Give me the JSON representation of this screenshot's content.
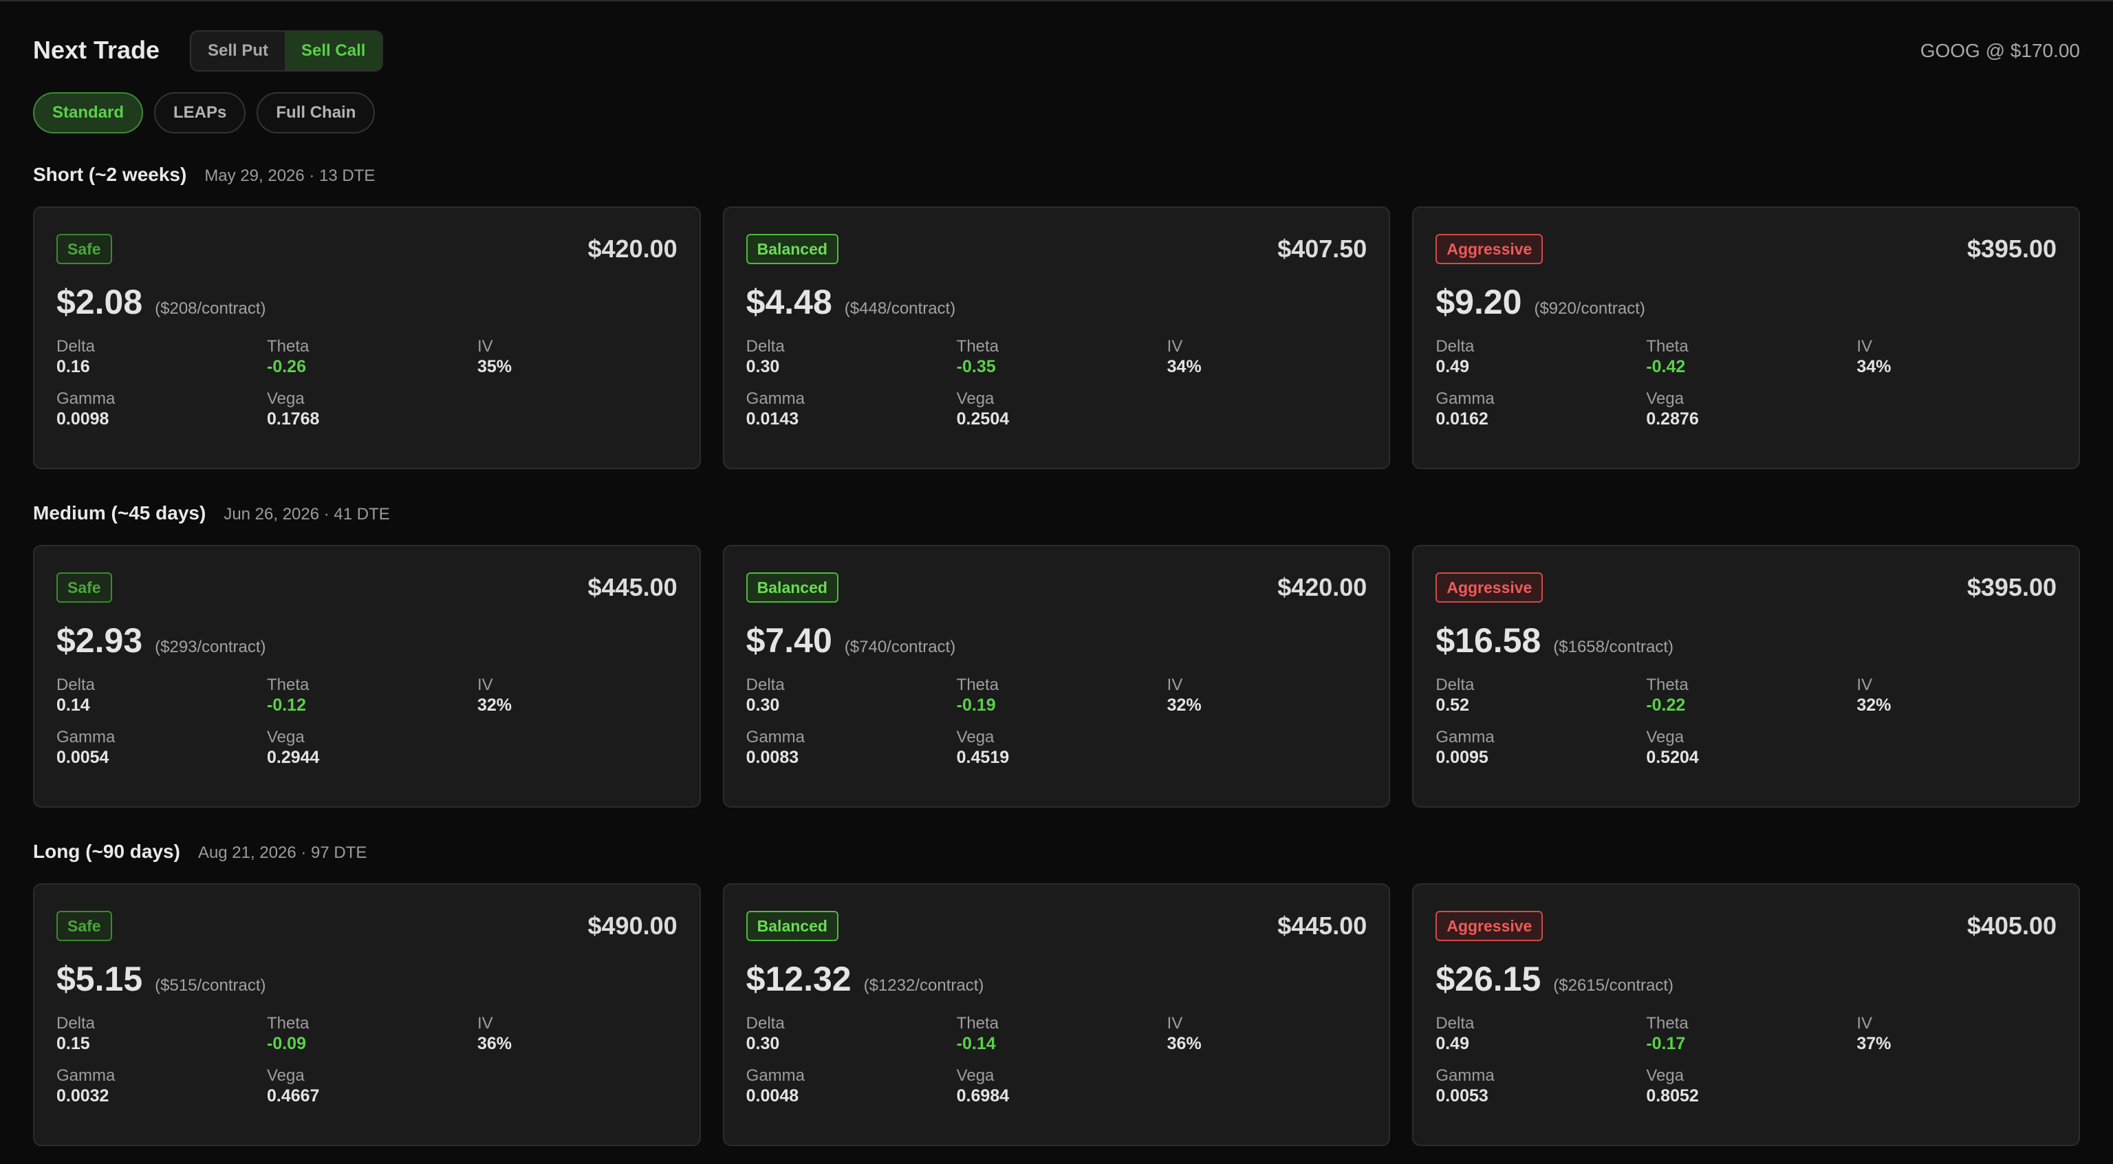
{
  "header": {
    "title": "Next Trade",
    "toggle": [
      {
        "label": "Sell Put",
        "active": false
      },
      {
        "label": "Sell Call",
        "active": true
      }
    ],
    "ticker": "GOOG @ $170.00"
  },
  "filters": [
    {
      "label": "Standard",
      "active": true
    },
    {
      "label": "LEAPs",
      "active": false
    },
    {
      "label": "Full Chain",
      "active": false
    }
  ],
  "labels": {
    "delta": "Delta",
    "theta": "Theta",
    "iv": "IV",
    "gamma": "Gamma",
    "vega": "Vega"
  },
  "colors": {
    "positive": "#5ad14a",
    "safe": "#4aa63b",
    "balanced": "#6bdc56",
    "aggressive": "#ef5a5a"
  },
  "sections": [
    {
      "title": "Short (~2 weeks)",
      "subtitle": "May 29, 2026 · 13 DTE",
      "cards": [
        {
          "badge": "Safe",
          "kind": "safe",
          "strike": "$420.00",
          "premium": "$2.08",
          "per_contract": "($208/contract)",
          "delta": "0.16",
          "theta": "-0.26",
          "iv": "35%",
          "gamma": "0.0098",
          "vega": "0.1768"
        },
        {
          "badge": "Balanced",
          "kind": "balanced",
          "strike": "$407.50",
          "premium": "$4.48",
          "per_contract": "($448/contract)",
          "delta": "0.30",
          "theta": "-0.35",
          "iv": "34%",
          "gamma": "0.0143",
          "vega": "0.2504"
        },
        {
          "badge": "Aggressive",
          "kind": "aggressive",
          "strike": "$395.00",
          "premium": "$9.20",
          "per_contract": "($920/contract)",
          "delta": "0.49",
          "theta": "-0.42",
          "iv": "34%",
          "gamma": "0.0162",
          "vega": "0.2876"
        }
      ]
    },
    {
      "title": "Medium (~45 days)",
      "subtitle": "Jun 26, 2026 · 41 DTE",
      "cards": [
        {
          "badge": "Safe",
          "kind": "safe",
          "strike": "$445.00",
          "premium": "$2.93",
          "per_contract": "($293/contract)",
          "delta": "0.14",
          "theta": "-0.12",
          "iv": "32%",
          "gamma": "0.0054",
          "vega": "0.2944"
        },
        {
          "badge": "Balanced",
          "kind": "balanced",
          "strike": "$420.00",
          "premium": "$7.40",
          "per_contract": "($740/contract)",
          "delta": "0.30",
          "theta": "-0.19",
          "iv": "32%",
          "gamma": "0.0083",
          "vega": "0.4519"
        },
        {
          "badge": "Aggressive",
          "kind": "aggressive",
          "strike": "$395.00",
          "premium": "$16.58",
          "per_contract": "($1658/contract)",
          "delta": "0.52",
          "theta": "-0.22",
          "iv": "32%",
          "gamma": "0.0095",
          "vega": "0.5204"
        }
      ]
    },
    {
      "title": "Long (~90 days)",
      "subtitle": "Aug 21, 2026 · 97 DTE",
      "cards": [
        {
          "badge": "Safe",
          "kind": "safe",
          "strike": "$490.00",
          "premium": "$5.15",
          "per_contract": "($515/contract)",
          "delta": "0.15",
          "theta": "-0.09",
          "iv": "36%",
          "gamma": "0.0032",
          "vega": "0.4667"
        },
        {
          "badge": "Balanced",
          "kind": "balanced",
          "strike": "$445.00",
          "premium": "$12.32",
          "per_contract": "($1232/contract)",
          "delta": "0.30",
          "theta": "-0.14",
          "iv": "36%",
          "gamma": "0.0048",
          "vega": "0.6984"
        },
        {
          "badge": "Aggressive",
          "kind": "aggressive",
          "strike": "$405.00",
          "premium": "$26.15",
          "per_contract": "($2615/contract)",
          "delta": "0.49",
          "theta": "-0.17",
          "iv": "37%",
          "gamma": "0.0053",
          "vega": "0.8052"
        }
      ]
    }
  ]
}
